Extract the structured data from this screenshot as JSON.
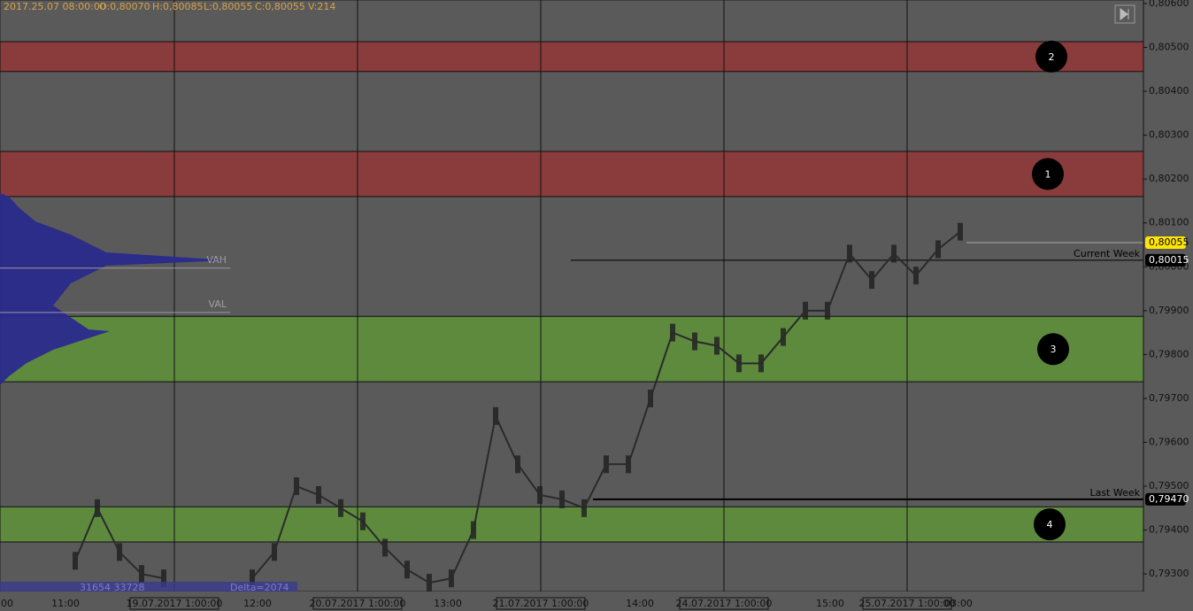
{
  "header": {
    "time": "2017.25.07 08:00:00",
    "open": "O:0,80070",
    "high": "H:0,80085",
    "low": "L:0,80055",
    "close": "C:0,80055",
    "volume": "V:214"
  },
  "chart_data": {
    "type": "price",
    "ylim": [
      0.7926,
      0.80608
    ],
    "yticks": [
      {
        "value": 0.806,
        "label": "0,80600"
      },
      {
        "value": 0.805,
        "label": "0,80500"
      },
      {
        "value": 0.804,
        "label": "0,80400"
      },
      {
        "value": 0.803,
        "label": "0,80300"
      },
      {
        "value": 0.802,
        "label": "0,80200"
      },
      {
        "value": 0.801,
        "label": "0,80100"
      },
      {
        "value": 0.8,
        "label": "0,80000"
      },
      {
        "value": 0.799,
        "label": "0,79900"
      },
      {
        "value": 0.798,
        "label": "0,79800"
      },
      {
        "value": 0.797,
        "label": "0,79700"
      },
      {
        "value": 0.796,
        "label": "0,79600"
      },
      {
        "value": 0.795,
        "label": "0,79500"
      },
      {
        "value": 0.794,
        "label": "0,79400"
      },
      {
        "value": 0.793,
        "label": "0,79300"
      }
    ],
    "zones": [
      {
        "label": "2",
        "low": 0.80445,
        "high": 0.80513,
        "color": "#8a3b3c"
      },
      {
        "label": "1",
        "low": 0.8016,
        "high": 0.80263,
        "color": "#8a3b3c"
      },
      {
        "label": "3",
        "low": 0.79738,
        "high": 0.79887,
        "color": "#5e8a3e"
      },
      {
        "label": "4",
        "low": 0.79373,
        "high": 0.79453,
        "color": "#5e8a3e"
      }
    ],
    "levels": [
      {
        "label": "VAH",
        "value": 0.79997
      },
      {
        "label": "VAL",
        "value": 0.79896
      },
      {
        "label": "Current Week",
        "value": 0.80015,
        "tag": "0,80015"
      },
      {
        "label": "Last Week",
        "value": 0.7947,
        "tag": "0,79470"
      }
    ],
    "last_price": {
      "value": 0.80055,
      "label": "0,80055"
    },
    "time_labels": [
      "00",
      "11:00",
      "12:00",
      "13:00",
      "14:00",
      "15:00",
      "03:00"
    ],
    "date_labels": [
      "19.07.2017 1:00:00",
      "20.07.2017 1:00:00",
      "21.07.2017 1:00:00",
      "24.07.2017 1:00:00",
      "25.07.2017 1:00:00"
    ],
    "price_trace": {
      "values": [
        0.7933,
        0.7945,
        0.7935,
        0.793,
        0.7929,
        null,
        null,
        null,
        0.7929,
        0.7935,
        0.795,
        0.7948,
        0.7945,
        0.7942,
        0.7936,
        0.7931,
        0.7928,
        0.7929,
        0.794,
        0.7966,
        0.7955,
        0.7948,
        0.7947,
        0.7945,
        0.7955,
        0.7955,
        0.797,
        0.7985,
        0.7983,
        0.7982,
        0.7978,
        0.7978,
        0.7984,
        0.799,
        0.799,
        0.8003,
        0.7997,
        0.8003,
        0.7998,
        0.8004,
        0.8008
      ]
    },
    "footer": {
      "volume": "31654 33728",
      "delta": "Delta=2074"
    }
  }
}
